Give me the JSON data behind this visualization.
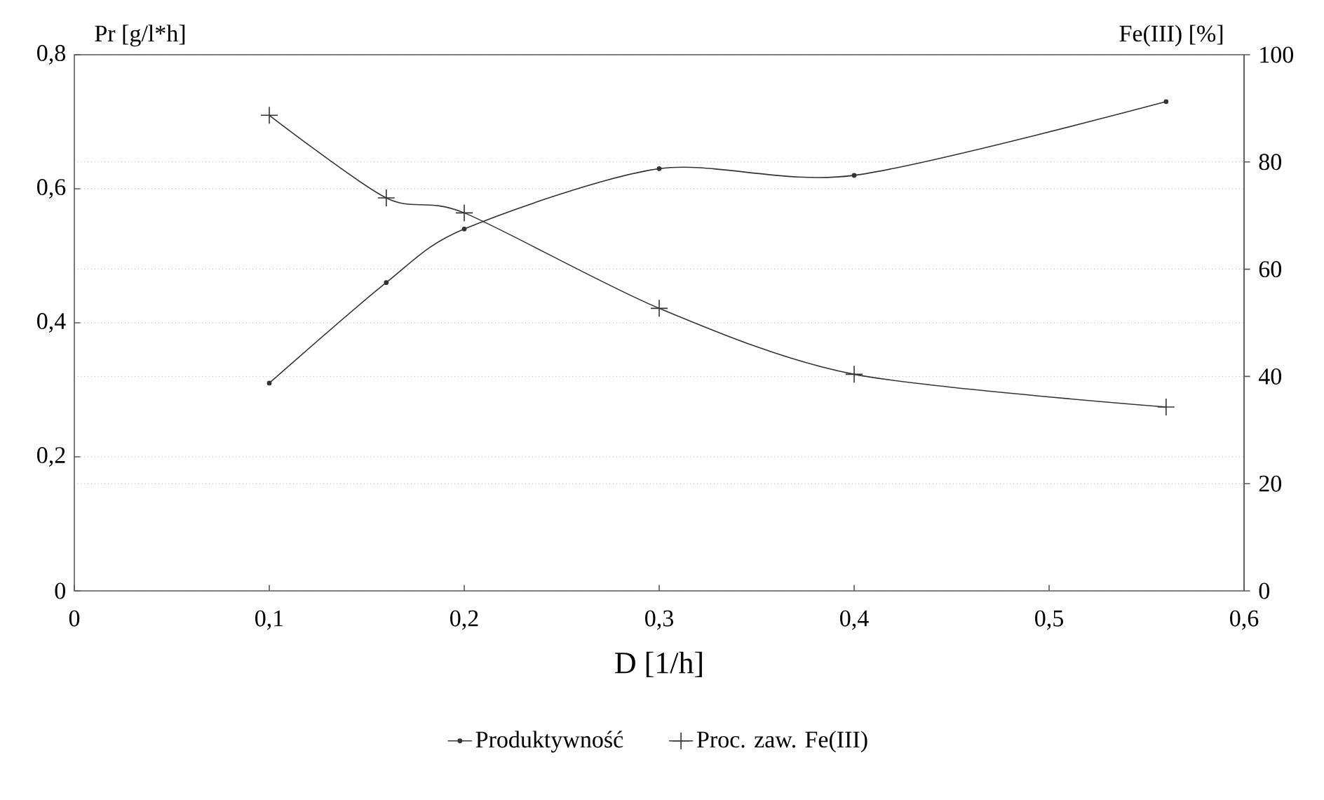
{
  "chart_data": {
    "type": "line",
    "xlabel": "D [1/h]",
    "ylabel": "Pr [g/l*h]",
    "y2label": "Fe(III) [%]",
    "x": [
      0.1,
      0.16,
      0.2,
      0.3,
      0.4,
      0.56
    ],
    "series": [
      {
        "name": "Produktywność",
        "color": "#333333",
        "marker": "circle",
        "values": [
          0.31,
          0.46,
          0.54,
          0.63,
          0.62,
          0.73
        ]
      },
      {
        "name": "Proc. zaw. Fe(III)",
        "color": "#333333",
        "marker": "cross",
        "axis": "y2",
        "values": [
          88.7,
          73.3,
          70.5,
          52.7,
          40.4,
          34.3
        ]
      }
    ],
    "xlim": [
      0,
      0.6
    ],
    "ylim": [
      0,
      0.8
    ],
    "y2lim": [
      0,
      100
    ],
    "xticks": [
      0,
      {
        "value": 0.1,
        "label": "0,1"
      },
      {
        "value": 0.2,
        "label": "0,2"
      },
      {
        "value": 0.3,
        "label": "0,3"
      },
      {
        "value": 0.4,
        "label": "0,4"
      },
      {
        "value": 0.5,
        "label": "0,5"
      },
      {
        "value": 0.6,
        "label": "0,6"
      }
    ],
    "yticks": [
      0,
      {
        "value": 0.2,
        "label": "0,2"
      },
      {
        "value": 0.4,
        "label": "0,4"
      },
      {
        "value": 0.6,
        "label": "0,6"
      },
      {
        "value": 0.8,
        "label": "0,8"
      }
    ],
    "y2ticks": [
      0,
      20,
      40,
      60,
      80,
      100
    ],
    "grid": "y",
    "legend": "bottom"
  }
}
